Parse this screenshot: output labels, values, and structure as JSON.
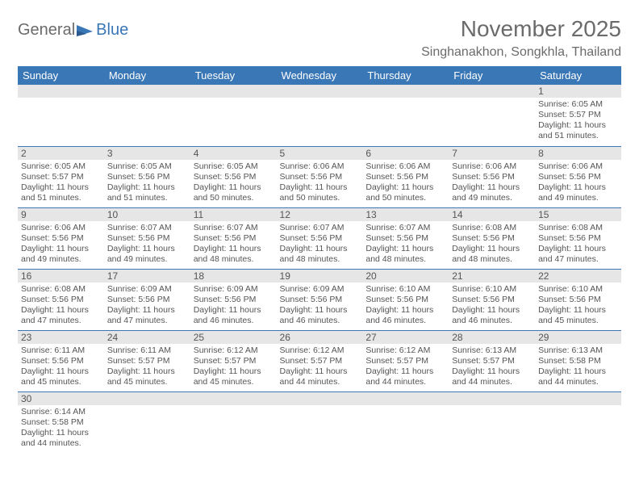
{
  "logo": {
    "word1": "General",
    "word2": "Blue"
  },
  "title": "November 2025",
  "location": "Singhanakhon, Songkhla, Thailand",
  "colors": {
    "header_bg": "#3a77b7",
    "header_fg": "#ffffff",
    "daynum_bg": "#e6e6e6",
    "text": "#555555",
    "rule": "#3a77b7",
    "page_bg": "#ffffff"
  },
  "fonts": {
    "title_pt": 28,
    "location_pt": 16,
    "dayhead_pt": 13,
    "body_pt": 10.5
  },
  "weekdays": [
    "Sunday",
    "Monday",
    "Tuesday",
    "Wednesday",
    "Thursday",
    "Friday",
    "Saturday"
  ],
  "first_weekday_index": 6,
  "days": [
    {
      "n": 1,
      "sunrise": "6:05 AM",
      "sunset": "5:57 PM",
      "daylight": "11 hours and 51 minutes."
    },
    {
      "n": 2,
      "sunrise": "6:05 AM",
      "sunset": "5:57 PM",
      "daylight": "11 hours and 51 minutes."
    },
    {
      "n": 3,
      "sunrise": "6:05 AM",
      "sunset": "5:56 PM",
      "daylight": "11 hours and 51 minutes."
    },
    {
      "n": 4,
      "sunrise": "6:05 AM",
      "sunset": "5:56 PM",
      "daylight": "11 hours and 50 minutes."
    },
    {
      "n": 5,
      "sunrise": "6:06 AM",
      "sunset": "5:56 PM",
      "daylight": "11 hours and 50 minutes."
    },
    {
      "n": 6,
      "sunrise": "6:06 AM",
      "sunset": "5:56 PM",
      "daylight": "11 hours and 50 minutes."
    },
    {
      "n": 7,
      "sunrise": "6:06 AM",
      "sunset": "5:56 PM",
      "daylight": "11 hours and 49 minutes."
    },
    {
      "n": 8,
      "sunrise": "6:06 AM",
      "sunset": "5:56 PM",
      "daylight": "11 hours and 49 minutes."
    },
    {
      "n": 9,
      "sunrise": "6:06 AM",
      "sunset": "5:56 PM",
      "daylight": "11 hours and 49 minutes."
    },
    {
      "n": 10,
      "sunrise": "6:07 AM",
      "sunset": "5:56 PM",
      "daylight": "11 hours and 49 minutes."
    },
    {
      "n": 11,
      "sunrise": "6:07 AM",
      "sunset": "5:56 PM",
      "daylight": "11 hours and 48 minutes."
    },
    {
      "n": 12,
      "sunrise": "6:07 AM",
      "sunset": "5:56 PM",
      "daylight": "11 hours and 48 minutes."
    },
    {
      "n": 13,
      "sunrise": "6:07 AM",
      "sunset": "5:56 PM",
      "daylight": "11 hours and 48 minutes."
    },
    {
      "n": 14,
      "sunrise": "6:08 AM",
      "sunset": "5:56 PM",
      "daylight": "11 hours and 48 minutes."
    },
    {
      "n": 15,
      "sunrise": "6:08 AM",
      "sunset": "5:56 PM",
      "daylight": "11 hours and 47 minutes."
    },
    {
      "n": 16,
      "sunrise": "6:08 AM",
      "sunset": "5:56 PM",
      "daylight": "11 hours and 47 minutes."
    },
    {
      "n": 17,
      "sunrise": "6:09 AM",
      "sunset": "5:56 PM",
      "daylight": "11 hours and 47 minutes."
    },
    {
      "n": 18,
      "sunrise": "6:09 AM",
      "sunset": "5:56 PM",
      "daylight": "11 hours and 46 minutes."
    },
    {
      "n": 19,
      "sunrise": "6:09 AM",
      "sunset": "5:56 PM",
      "daylight": "11 hours and 46 minutes."
    },
    {
      "n": 20,
      "sunrise": "6:10 AM",
      "sunset": "5:56 PM",
      "daylight": "11 hours and 46 minutes."
    },
    {
      "n": 21,
      "sunrise": "6:10 AM",
      "sunset": "5:56 PM",
      "daylight": "11 hours and 46 minutes."
    },
    {
      "n": 22,
      "sunrise": "6:10 AM",
      "sunset": "5:56 PM",
      "daylight": "11 hours and 45 minutes."
    },
    {
      "n": 23,
      "sunrise": "6:11 AM",
      "sunset": "5:56 PM",
      "daylight": "11 hours and 45 minutes."
    },
    {
      "n": 24,
      "sunrise": "6:11 AM",
      "sunset": "5:57 PM",
      "daylight": "11 hours and 45 minutes."
    },
    {
      "n": 25,
      "sunrise": "6:12 AM",
      "sunset": "5:57 PM",
      "daylight": "11 hours and 45 minutes."
    },
    {
      "n": 26,
      "sunrise": "6:12 AM",
      "sunset": "5:57 PM",
      "daylight": "11 hours and 44 minutes."
    },
    {
      "n": 27,
      "sunrise": "6:12 AM",
      "sunset": "5:57 PM",
      "daylight": "11 hours and 44 minutes."
    },
    {
      "n": 28,
      "sunrise": "6:13 AM",
      "sunset": "5:57 PM",
      "daylight": "11 hours and 44 minutes."
    },
    {
      "n": 29,
      "sunrise": "6:13 AM",
      "sunset": "5:58 PM",
      "daylight": "11 hours and 44 minutes."
    },
    {
      "n": 30,
      "sunrise": "6:14 AM",
      "sunset": "5:58 PM",
      "daylight": "11 hours and 44 minutes."
    }
  ],
  "labels": {
    "sunrise": "Sunrise:",
    "sunset": "Sunset:",
    "daylight": "Daylight:"
  }
}
